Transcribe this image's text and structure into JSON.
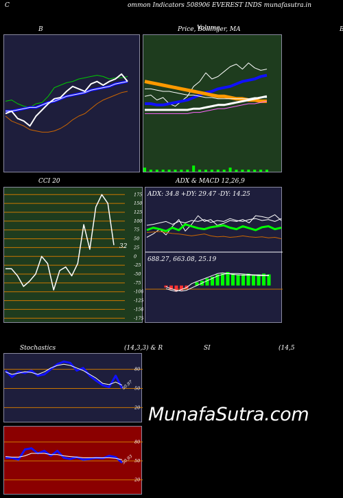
{
  "header": {
    "letter_left": "C",
    "text": "ommon  Indicators 508906  EVEREST INDS munafasutra.in"
  },
  "titles": {
    "bollinger_left": "B",
    "price_ma": "Price,  Bollinger,  MA",
    "price_ma_overlay": "Volume",
    "far_right": "B",
    "cci": "CCI 20",
    "adx_macd": "ADX  & MACD 12,26,9",
    "stoch": "Stochastics",
    "stoch_params": "(14,3,3) & R",
    "rsi": "SI",
    "rsi_params": "(14,5"
  },
  "watermark": "MunafaSutra.com",
  "colors": {
    "bg": "#000000",
    "navy_panel": "#1e1e3c",
    "green_panel": "#1e3c1e",
    "red_panel": "#8b0000",
    "grid_orange": "#cc7700",
    "line_blue": "#1010ff",
    "line_green": "#00cc00",
    "line_orange": "#cc6600",
    "ma_orange": "#ff9900",
    "bright_green": "#00ff00"
  },
  "chart_data": [
    {
      "id": "bollinger",
      "type": "line",
      "title": "B",
      "ylim": [
        0,
        100
      ],
      "series": [
        {
          "values": [
            52,
            53,
            50,
            48,
            47,
            50,
            51,
            56,
            63,
            65,
            67,
            68,
            70,
            71,
            72,
            73,
            72,
            70,
            71,
            71,
            72
          ]
        },
        {
          "values": [
            44,
            44,
            45,
            46,
            47,
            47,
            49,
            51,
            52,
            54,
            56,
            57,
            58,
            59,
            61,
            62,
            63,
            64,
            66,
            67,
            68
          ]
        },
        {
          "values": [
            44,
            44,
            45,
            46,
            47,
            47,
            49,
            51,
            52,
            54,
            56,
            57,
            58,
            59,
            61,
            62,
            63,
            64,
            66,
            67,
            68
          ]
        },
        {
          "values": [
            40,
            36,
            34,
            32,
            29,
            28,
            27,
            27,
            28,
            30,
            33,
            37,
            40,
            42,
            46,
            50,
            53,
            55,
            57,
            59,
            60
          ]
        },
        {
          "values": [
            42,
            44,
            38,
            36,
            32,
            40,
            45,
            50,
            54,
            55,
            60,
            64,
            62,
            60,
            66,
            68,
            65,
            68,
            70,
            74,
            68
          ]
        }
      ]
    },
    {
      "id": "price_ma",
      "type": "line",
      "title": "Price,  Bollinger,  MA",
      "ylim": [
        0,
        100
      ],
      "series": [
        {
          "values": [
            56,
            57,
            53,
            55,
            50,
            48,
            52,
            56,
            64,
            68,
            75,
            70,
            72,
            76,
            80,
            82,
            78,
            83,
            79,
            77,
            78
          ]
        },
        {
          "values": [
            50,
            50,
            49,
            49,
            50,
            51,
            52,
            53,
            55,
            57,
            59,
            60,
            62,
            63,
            64,
            66,
            68,
            69,
            70,
            72,
            73
          ]
        },
        {
          "values": [
            68,
            67,
            66,
            65,
            64,
            63,
            62,
            61,
            60,
            59,
            58,
            57,
            56,
            56,
            55,
            54,
            54,
            53,
            53,
            52,
            52
          ]
        },
        {
          "values": [
            62,
            62,
            61,
            60,
            60,
            59,
            58,
            57,
            57,
            56,
            55,
            55,
            54,
            54,
            54,
            54,
            54,
            54,
            55,
            55,
            55
          ]
        },
        {
          "values": [
            45,
            45,
            45,
            45,
            45,
            45,
            45,
            45,
            46,
            46,
            47,
            48,
            49,
            49,
            50,
            51,
            52,
            53,
            54,
            55,
            56
          ]
        },
        {
          "values": [
            42,
            42,
            42,
            42,
            42,
            42,
            42,
            42,
            43,
            43,
            44,
            45,
            46,
            46,
            47,
            48,
            49,
            50,
            50,
            51,
            52
          ]
        }
      ],
      "volume": [
        2,
        1,
        1,
        1,
        1,
        1,
        1,
        1,
        3,
        1,
        1,
        1,
        1,
        1,
        2,
        1,
        1,
        1,
        1,
        1,
        1
      ]
    },
    {
      "id": "cci",
      "type": "line",
      "title": "CCI 20",
      "yticks": [
        175,
        150,
        125,
        100,
        75,
        50,
        25,
        0,
        -25,
        -50,
        -75,
        -100,
        -125,
        -150,
        -175
      ],
      "ylim": [
        -190,
        195
      ],
      "last_label": "32",
      "series": [
        {
          "values": [
            -35,
            -35,
            -55,
            -85,
            -70,
            -50,
            0,
            -20,
            -95,
            -40,
            -30,
            -55,
            -20,
            90,
            20,
            140,
            175,
            150,
            32
          ]
        }
      ]
    },
    {
      "id": "adx",
      "type": "line",
      "title": "ADX: 34.8  +DY: 29.47 -DY: 14.25",
      "ylim": [
        0,
        100
      ],
      "series": [
        {
          "values": [
            25,
            32,
            42,
            30,
            48,
            62,
            38,
            52,
            70,
            58,
            62,
            50,
            54,
            60,
            58,
            62,
            55,
            70,
            68,
            65,
            72,
            60
          ]
        },
        {
          "values": [
            50,
            52,
            55,
            58,
            52,
            58,
            55,
            60,
            58,
            62,
            56,
            60,
            58,
            64,
            60,
            58,
            62,
            64,
            60,
            62,
            58,
            64
          ]
        },
        {
          "values": [
            35,
            36,
            37,
            35,
            33,
            32,
            30,
            28,
            30,
            32,
            28,
            26,
            27,
            25,
            26,
            28,
            26,
            25,
            26,
            24,
            25,
            22
          ]
        },
        {
          "values": [
            40,
            45,
            42,
            38,
            45,
            40,
            52,
            48,
            44,
            42,
            46,
            48,
            50,
            45,
            42,
            48,
            44,
            40,
            46,
            48,
            42,
            45
          ]
        }
      ]
    },
    {
      "id": "macd",
      "type": "bar",
      "title": "688.27,  663.08,  25.19",
      "ylim": [
        -30,
        60
      ],
      "series": [
        {
          "values": [
            -8,
            -12,
            -15,
            -10,
            -5,
            5,
            10,
            15,
            20,
            25,
            30,
            32,
            30,
            28,
            27,
            26,
            26,
            26,
            25,
            25,
            25
          ]
        },
        {
          "values": [
            -3,
            -8,
            -12,
            -14,
            -12,
            -6,
            0,
            6,
            12,
            18,
            24,
            28,
            30,
            30,
            30,
            29,
            28,
            27,
            27,
            26,
            26
          ]
        },
        {
          "values": [
            -5,
            -10,
            -14,
            -12,
            -8,
            0,
            8,
            12,
            18,
            22,
            28,
            30,
            34,
            30,
            28,
            28,
            30,
            28,
            28,
            30,
            28
          ]
        }
      ]
    },
    {
      "id": "stochastics",
      "type": "line",
      "title": "Stochastics",
      "yticks": [
        80,
        50,
        20
      ],
      "ylim": [
        0,
        100
      ],
      "last_label": "50.97",
      "series": [
        {
          "values": [
            78,
            68,
            76,
            74,
            78,
            70,
            72,
            80,
            88,
            92,
            90,
            78,
            82,
            70,
            62,
            55,
            52,
            70,
            50
          ]
        },
        {
          "values": [
            76,
            72,
            74,
            76,
            75,
            72,
            76,
            82,
            86,
            88,
            86,
            82,
            78,
            72,
            66,
            58,
            56,
            60,
            55
          ]
        }
      ]
    },
    {
      "id": "rsi",
      "type": "line",
      "title": "SI",
      "yticks": [
        80,
        50,
        20
      ],
      "ylim": [
        0,
        100
      ],
      "last_label": "50.93",
      "series": [
        {
          "values": [
            55,
            55,
            52,
            68,
            70,
            62,
            66,
            58,
            66,
            55,
            53,
            56,
            52,
            53,
            55,
            54,
            58,
            56,
            47
          ]
        },
        {
          "values": [
            57,
            56,
            56,
            58,
            62,
            62,
            62,
            60,
            60,
            58,
            57,
            56,
            55,
            55,
            55,
            55,
            55,
            54,
            52
          ]
        }
      ]
    }
  ]
}
